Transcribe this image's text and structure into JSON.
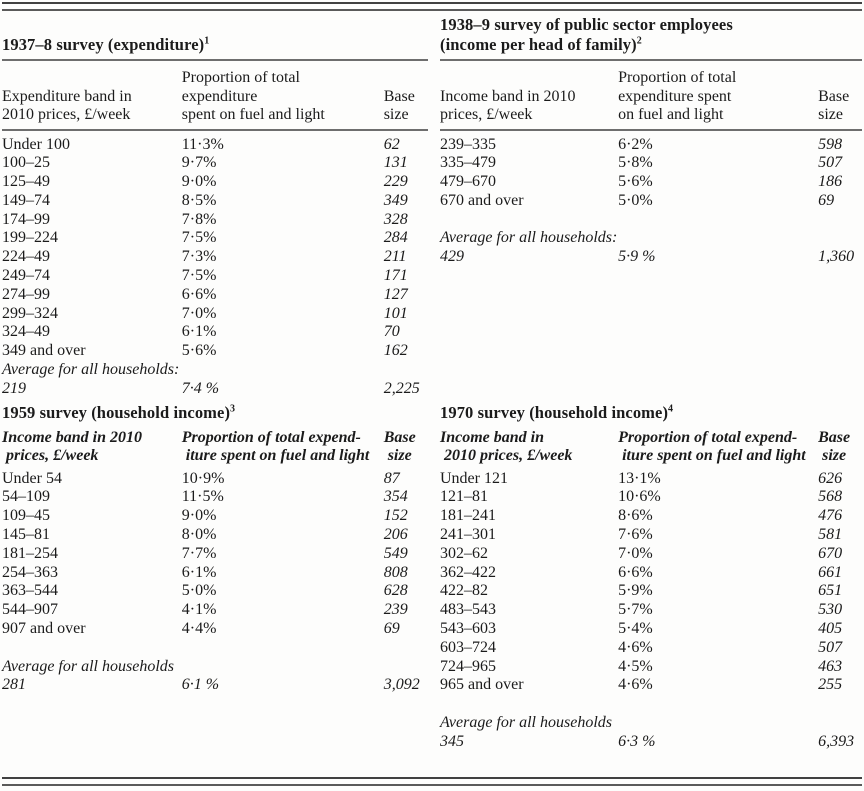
{
  "colors": {
    "ink": "#1b1b1b",
    "rule": "#4a4a4a"
  },
  "tables": [
    {
      "id": "survey-1937-8",
      "title": "1937–8 survey (expenditure)",
      "title_sup": "1",
      "headers": [
        "Expenditure band in\n2010 prices, £/week",
        "Proportion of total\nexpenditure\nspent on fuel and light",
        "Base\nsize"
      ],
      "rows": [
        {
          "band": "Under 100",
          "prop": "11·3%",
          "base": "62"
        },
        {
          "band": "100–25",
          "prop": "9·7%",
          "base": "131"
        },
        {
          "band": "125–49",
          "prop": "9·0%",
          "base": "229"
        },
        {
          "band": "149–74",
          "prop": "8·5%",
          "base": "349"
        },
        {
          "band": "174–99",
          "prop": "7·8%",
          "base": "328"
        },
        {
          "band": "199–224",
          "prop": "7·5%",
          "base": "284"
        },
        {
          "band": "224–49",
          "prop": "7·3%",
          "base": "211"
        },
        {
          "band": "249–74",
          "prop": "7·5%",
          "base": "171"
        },
        {
          "band": "274–99",
          "prop": "6·6%",
          "base": "127"
        },
        {
          "band": "299–324",
          "prop": "7·0%",
          "base": "101"
        },
        {
          "band": "324–49",
          "prop": "6·1%",
          "base": "70"
        },
        {
          "band": "349 and over",
          "prop": "5·6%",
          "base": "162"
        }
      ],
      "gap_before_average": false,
      "average_label": "Average for all households:",
      "average": {
        "band": "219",
        "prop": "7·4 %",
        "base": "2,225"
      }
    },
    {
      "id": "survey-1938-9",
      "title": "1938–9 survey of public sector employees\n(income per head of family)",
      "title_sup": "2",
      "headers": [
        "Income band in 2010\nprices, £/week",
        "Proportion of total\nexpenditure spent\non fuel and light",
        "Base\nsize"
      ],
      "rows": [
        {
          "band": "239–335",
          "prop": "6·2%",
          "base": "598"
        },
        {
          "band": "335–479",
          "prop": "5·8%",
          "base": "507"
        },
        {
          "band": "479–670",
          "prop": "5·6%",
          "base": "186"
        },
        {
          "band": "670 and over",
          "prop": "5·0%",
          "base": "69"
        }
      ],
      "gap_before_average": true,
      "average_label": "Average for all households:",
      "average": {
        "band": "429",
        "prop": "5·9 %",
        "base": "1,360"
      }
    },
    {
      "id": "survey-1959",
      "title": "1959 survey (household income)",
      "title_sup": "3",
      "headers": [
        "Income band in 2010\n prices, £/week",
        "Proportion of total expend-\n iture spent on fuel and light",
        "Base\n size"
      ],
      "rows": [
        {
          "band": "Under 54",
          "prop": "10·9%",
          "base": "87"
        },
        {
          "band": "54–109",
          "prop": "11·5%",
          "base": "354"
        },
        {
          "band": "109–45",
          "prop": "9·0%",
          "base": "152"
        },
        {
          "band": "145–81",
          "prop": "8·0%",
          "base": "206"
        },
        {
          "band": "181–254",
          "prop": "7·7%",
          "base": "549"
        },
        {
          "band": "254–363",
          "prop": "6·1%",
          "base": "808"
        },
        {
          "band": "363–544",
          "prop": "5·0%",
          "base": "628"
        },
        {
          "band": "544–907",
          "prop": "4·1%",
          "base": "239"
        },
        {
          "band": "907 and over",
          "prop": "4·4%",
          "base": "69"
        }
      ],
      "gap_before_average": true,
      "average_label": "Average for all households",
      "average": {
        "band": "281",
        "prop": "6·1 %",
        "base": "3,092"
      }
    },
    {
      "id": "survey-1970",
      "title": "1970 survey (household income)",
      "title_sup": "4",
      "headers": [
        "Income band in\n 2010 prices, £/week",
        "Proportion of total expend-\n iture spent on fuel and light",
        "Base\n size"
      ],
      "rows": [
        {
          "band": "Under 121",
          "prop": "13·1%",
          "base": "626"
        },
        {
          "band": "121–81",
          "prop": "10·6%",
          "base": "568"
        },
        {
          "band": "181–241",
          "prop": "8·6%",
          "base": "476"
        },
        {
          "band": "241–301",
          "prop": "7·6%",
          "base": "581"
        },
        {
          "band": "302–62",
          "prop": "7·0%",
          "base": "670"
        },
        {
          "band": "362–422",
          "prop": "6·6%",
          "base": "661"
        },
        {
          "band": "422–82",
          "prop": "5·9%",
          "base": "651"
        },
        {
          "band": "483–543",
          "prop": "5·7%",
          "base": "530"
        },
        {
          "band": "543–603",
          "prop": "5·4%",
          "base": "405"
        },
        {
          "band": "603–724",
          "prop": "4·6%",
          "base": "507"
        },
        {
          "band": "724–965",
          "prop": "4·5%",
          "base": "463"
        },
        {
          "band": "965 and over",
          "prop": "4·6%",
          "base": "255"
        }
      ],
      "gap_before_average": true,
      "average_label": "Average for all households",
      "average": {
        "band": "345",
        "prop": "6·3 %",
        "base": "6,393"
      }
    }
  ]
}
